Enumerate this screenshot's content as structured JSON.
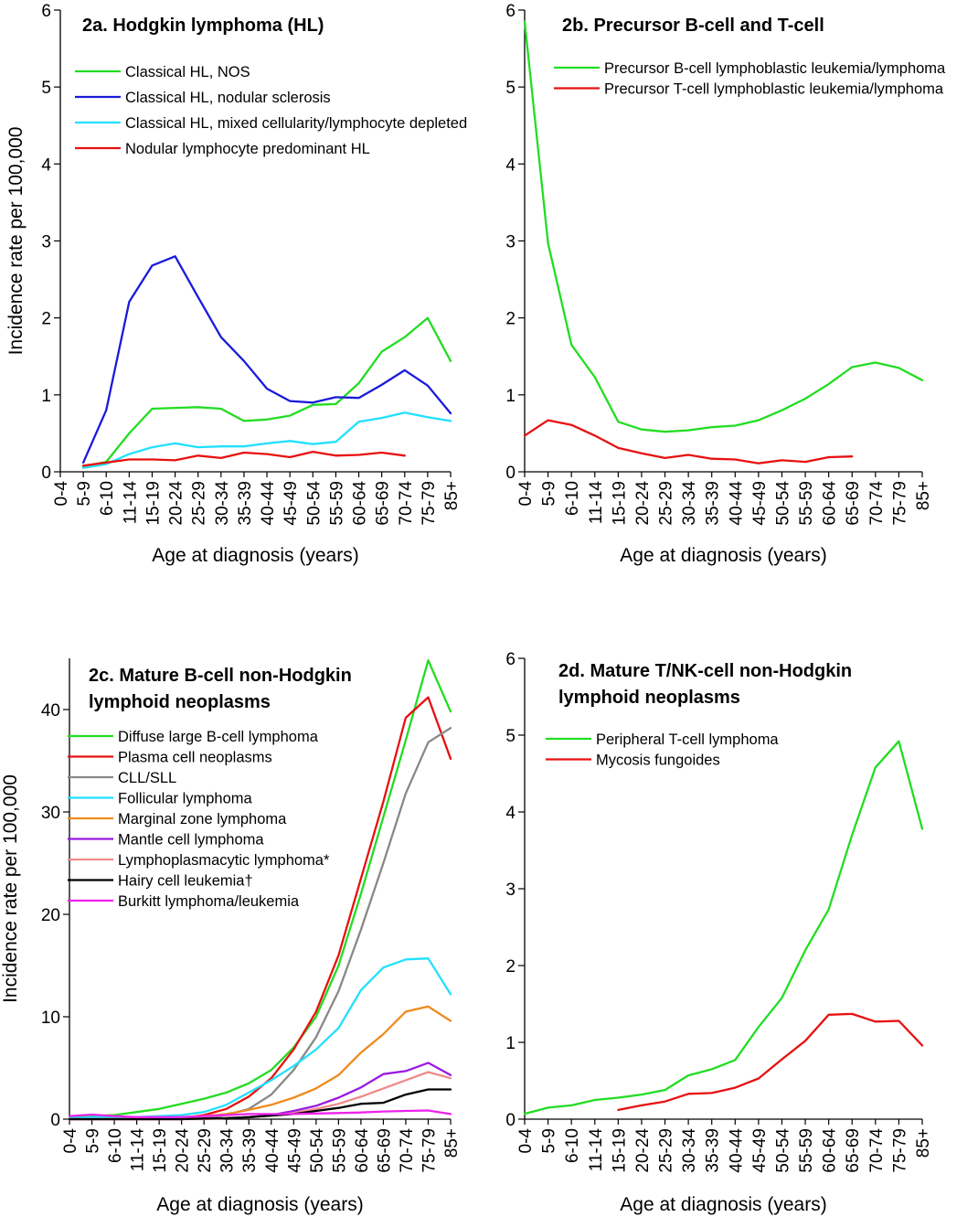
{
  "chart_data": [
    {
      "id": "a",
      "type": "line",
      "title": "2a. Hodgkin lymphoma (HL)",
      "xlabel": "Age at diagnosis (years)",
      "ylabel": "Incidence rate per 100,000",
      "categories": [
        "0-4",
        "5-9",
        "6-10",
        "11-14",
        "15-19",
        "20-24",
        "25-29",
        "30-34",
        "35-39",
        "40-44",
        "45-49",
        "50-54",
        "55-59",
        "60-64",
        "65-69",
        "70-74",
        "75-79",
        "85+"
      ],
      "ylim": [
        0,
        6
      ],
      "yticks": [
        0,
        1,
        2,
        3,
        4,
        5,
        6
      ],
      "legend_position": "top-left",
      "grid": false,
      "series": [
        {
          "name": "Classical HL, NOS",
          "color": "#22dd22",
          "values": [
            null,
            0.07,
            0.13,
            0.5,
            0.82,
            0.83,
            0.84,
            0.82,
            0.66,
            0.68,
            0.73,
            0.87,
            0.88,
            1.15,
            1.56,
            1.75,
            2.0,
            1.44
          ]
        },
        {
          "name": "Classical HL, nodular sclerosis",
          "color": "#1a1adc",
          "values": [
            null,
            0.12,
            0.8,
            2.21,
            2.68,
            2.8,
            2.27,
            1.75,
            1.44,
            1.08,
            0.92,
            0.9,
            0.97,
            0.96,
            1.13,
            1.32,
            1.12,
            0.76
          ]
        },
        {
          "name": "Classical HL, mixed cellularity/lymphocyte depleted",
          "color": "#22e0ff",
          "values": [
            null,
            0.05,
            0.1,
            0.23,
            0.32,
            0.37,
            0.32,
            0.33,
            0.33,
            0.37,
            0.4,
            0.36,
            0.39,
            0.65,
            0.7,
            0.77,
            0.71,
            0.66
          ]
        },
        {
          "name": "Nodular lymphocyte predominant HL",
          "color": "#e81010",
          "values": [
            null,
            0.08,
            0.12,
            0.16,
            0.16,
            0.15,
            0.21,
            0.18,
            0.25,
            0.23,
            0.19,
            0.26,
            0.21,
            0.22,
            0.25,
            0.21,
            null,
            null
          ]
        }
      ]
    },
    {
      "id": "b",
      "type": "line",
      "title": "2b. Precursor B-cell and T-cell",
      "xlabel": "Age at diagnosis (years)",
      "ylabel": "",
      "categories": [
        "0-4",
        "5-9",
        "6-10",
        "11-14",
        "15-19",
        "20-24",
        "25-29",
        "30-34",
        "35-39",
        "40-44",
        "45-49",
        "50-54",
        "55-59",
        "60-64",
        "65-69",
        "70-74",
        "75-79",
        "85+"
      ],
      "ylim": [
        0,
        6
      ],
      "yticks": [
        0,
        1,
        2,
        3,
        4,
        5,
        6
      ],
      "legend_position": "top-right",
      "grid": false,
      "series": [
        {
          "name": "Precursor B-cell lymphoblastic leukemia/lymphoma",
          "color": "#22dd22",
          "values": [
            5.85,
            2.97,
            1.65,
            1.23,
            0.65,
            0.55,
            0.52,
            0.54,
            0.58,
            0.6,
            0.67,
            0.8,
            0.95,
            1.14,
            1.36,
            1.42,
            1.35,
            1.19
          ]
        },
        {
          "name": "Precursor T-cell lymphoblastic leukemia/lymphoma",
          "color": "#e81010",
          "values": [
            0.47,
            0.67,
            0.61,
            0.47,
            0.31,
            0.24,
            0.18,
            0.22,
            0.17,
            0.16,
            0.11,
            0.15,
            0.13,
            0.19,
            0.2,
            null,
            null,
            null
          ]
        }
      ]
    },
    {
      "id": "c",
      "type": "line",
      "title": "2c. Mature B-cell non-Hodgkin lymphoid neoplasms",
      "title_lines": [
        "2c. Mature B-cell non-Hodgkin",
        "lymphoid neoplasms"
      ],
      "xlabel": "Age at diagnosis (years)",
      "ylabel": "Incidence rate per 100,000",
      "categories": [
        "0-4",
        "5-9",
        "6-10",
        "11-14",
        "15-19",
        "20-24",
        "25-29",
        "30-34",
        "35-39",
        "40-44",
        "45-49",
        "50-54",
        "55-59",
        "60-64",
        "65-69",
        "70-74",
        "75-79",
        "85+"
      ],
      "ylim": [
        0,
        45
      ],
      "yticks": [
        0,
        10,
        20,
        30,
        40
      ],
      "legend_position": "top-left",
      "grid": false,
      "series": [
        {
          "name": "Diffuse large B-cell lymphoma",
          "color": "#22dd22",
          "values": [
            0.2,
            0.3,
            0.4,
            0.7,
            1.0,
            1.5,
            2.0,
            2.6,
            3.5,
            4.8,
            7.0,
            10.0,
            15.0,
            22.0,
            29.5,
            37.0,
            44.8,
            39.8
          ]
        },
        {
          "name": "Plasma cell neoplasms",
          "color": "#e81010",
          "values": [
            0,
            0,
            0,
            0,
            0,
            0.1,
            0.4,
            1.0,
            2.2,
            4.0,
            6.8,
            10.5,
            16.0,
            23.5,
            31.0,
            39.2,
            41.2,
            35.2
          ]
        },
        {
          "name": "CLL/SLL",
          "color": "#888888",
          "values": [
            0,
            0,
            0,
            0,
            0,
            0,
            0.1,
            0.4,
            1.0,
            2.4,
            4.8,
            8.0,
            12.5,
            18.5,
            25.0,
            31.8,
            36.8,
            38.2
          ]
        },
        {
          "name": "Follicular lymphoma",
          "color": "#22e0ff",
          "values": [
            0.1,
            0.2,
            0.2,
            0.2,
            0.3,
            0.4,
            0.7,
            1.4,
            2.6,
            3.8,
            5.2,
            6.8,
            8.9,
            12.6,
            14.8,
            15.6,
            15.7,
            12.2
          ]
        },
        {
          "name": "Marginal zone lymphoma",
          "color": "#f08a1c",
          "values": [
            0,
            0,
            0,
            0,
            0.1,
            0.2,
            0.3,
            0.5,
            0.9,
            1.4,
            2.1,
            3.0,
            4.3,
            6.5,
            8.3,
            10.5,
            11.0,
            9.6
          ]
        },
        {
          "name": "Mantle cell lymphoma",
          "color": "#9a1ae0",
          "values": [
            0,
            0,
            0,
            0,
            0,
            0,
            0.05,
            0.1,
            0.2,
            0.4,
            0.8,
            1.3,
            2.1,
            3.1,
            4.4,
            4.7,
            5.5,
            4.3
          ]
        },
        {
          "name": "Lymphoplasmacytic lymphoma*",
          "color": "#f08a8a",
          "values": [
            0,
            0,
            0,
            0,
            0,
            0,
            0,
            0.1,
            0.2,
            0.35,
            0.6,
            1.0,
            1.5,
            2.2,
            3.0,
            3.8,
            4.6,
            4.0
          ]
        },
        {
          "name": "Hairy cell leukemia†",
          "color": "#000000",
          "values": [
            0,
            0,
            0,
            0,
            0,
            0,
            0.05,
            0.1,
            0.2,
            0.35,
            0.5,
            0.8,
            1.1,
            1.5,
            1.6,
            2.4,
            2.9,
            2.9
          ]
        },
        {
          "name": "Burkitt lymphoma/leukemia",
          "color": "#ee22ee",
          "values": [
            0.3,
            0.45,
            0.3,
            0.2,
            0.2,
            0.2,
            0.3,
            0.4,
            0.5,
            0.5,
            0.5,
            0.55,
            0.6,
            0.65,
            0.75,
            0.8,
            0.85,
            0.5
          ]
        }
      ]
    },
    {
      "id": "d",
      "type": "line",
      "title": "2d. Mature T/NK-cell non-Hodgkin lymphoid neoplasms",
      "title_lines": [
        "2d. Mature T/NK-cell non-Hodgkin",
        "lymphoid neoplasms"
      ],
      "xlabel": "Age at diagnosis (years)",
      "ylabel": "",
      "categories": [
        "0-4",
        "5-9",
        "6-10",
        "11-14",
        "15-19",
        "20-24",
        "25-29",
        "30-34",
        "35-39",
        "40-44",
        "45-49",
        "50-54",
        "55-59",
        "60-64",
        "65-69",
        "70-74",
        "75-79",
        "85+"
      ],
      "ylim": [
        0,
        6
      ],
      "yticks": [
        0,
        1,
        2,
        3,
        4,
        5,
        6
      ],
      "legend_position": "top-left",
      "grid": false,
      "series": [
        {
          "name": "Peripheral T-cell lymphoma",
          "color": "#22dd22",
          "values": [
            0.07,
            0.15,
            0.18,
            0.25,
            0.28,
            0.32,
            0.38,
            0.57,
            0.65,
            0.77,
            1.2,
            1.58,
            2.2,
            2.73,
            3.7,
            4.58,
            4.92,
            3.78
          ]
        },
        {
          "name": "Mycosis fungoides",
          "color": "#e81010",
          "values": [
            null,
            null,
            null,
            null,
            0.12,
            0.18,
            0.23,
            0.33,
            0.34,
            0.41,
            0.53,
            0.78,
            1.02,
            1.36,
            1.37,
            1.27,
            1.28,
            0.96
          ]
        }
      ]
    }
  ]
}
